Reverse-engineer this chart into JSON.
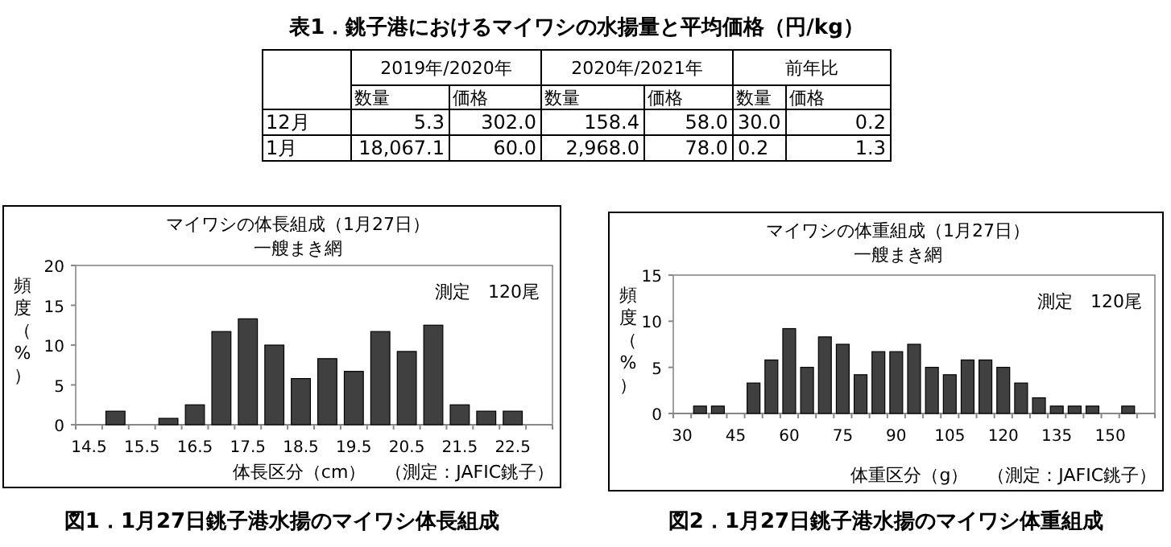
{
  "chart_data": [
    {
      "type": "other",
      "title": "表1．銚子港におけるマイワシの水揚量と平均価格（円/kg）",
      "annotations": [
        "2019年/2020年",
        "2020年/2021年",
        "前年比",
        "数量",
        "価格",
        "数量",
        "価格",
        "数量",
        "価格",
        "12月",
        "5.3",
        "302.0",
        "158.4",
        "58.0",
        "30.0",
        "0.2",
        "1月",
        "18,067.1",
        "60.0",
        "2,968.0",
        "78.0",
        "0.2",
        "1.3"
      ]
    },
    {
      "type": "bar",
      "title": "マイワシの体長組成（1月27日）",
      "subtitle": "一艘まき網",
      "xlabel": "体長区分（cm）",
      "ylabel": "頻度（%）",
      "annotations": [
        "測定　120尾",
        "（測定：JAFIC銚子）",
        "図1．1月27日銚子港水揚のマイワシ体長組成"
      ],
      "categories": [
        "14.5",
        null,
        "15.5",
        null,
        "16.5",
        null,
        "17.5",
        null,
        "18.5",
        null,
        "19.5",
        null,
        "20.5",
        null,
        "21.5",
        null,
        "22.5",
        null
      ],
      "series": [
        {
          "color": "#404040",
          "values": [
            0,
            1.7,
            0,
            0.8,
            2.5,
            11.7,
            13.3,
            10.0,
            5.8,
            8.3,
            6.7,
            11.7,
            9.2,
            12.5,
            2.5,
            1.7,
            1.7,
            0
          ]
        }
      ],
      "ylim": [
        0,
        20
      ],
      "yticks": [
        0,
        5,
        10,
        15,
        20
      ],
      "grid": false
    },
    {
      "type": "bar",
      "title": "マイワシの体重組成（1月27日）",
      "subtitle": "一艘まき網",
      "xlabel": "体重区分（g）",
      "ylabel": "頻度（%）",
      "annotations": [
        "測定　120尾",
        "（測定：JAFIC銚子）",
        "図2．1月27日銚子港水揚のマイワシ体重組成"
      ],
      "categories": [
        "30",
        null,
        null,
        "45",
        null,
        null,
        "60",
        null,
        null,
        "75",
        null,
        null,
        "90",
        null,
        null,
        "105",
        null,
        null,
        "120",
        null,
        null,
        "135",
        null,
        null,
        "150",
        null,
        null
      ],
      "series": [
        {
          "color": "#404040",
          "values": [
            0,
            0.8,
            0.8,
            0,
            3.3,
            5.8,
            9.2,
            5.0,
            8.3,
            7.5,
            4.2,
            6.7,
            6.7,
            7.5,
            5.0,
            4.2,
            5.8,
            5.8,
            5.0,
            3.3,
            1.7,
            0.8,
            0.8,
            0.8,
            0,
            0.8,
            0
          ]
        }
      ],
      "ylim": [
        0,
        15
      ],
      "yticks": [
        0,
        5,
        10,
        15
      ],
      "grid": false
    }
  ]
}
